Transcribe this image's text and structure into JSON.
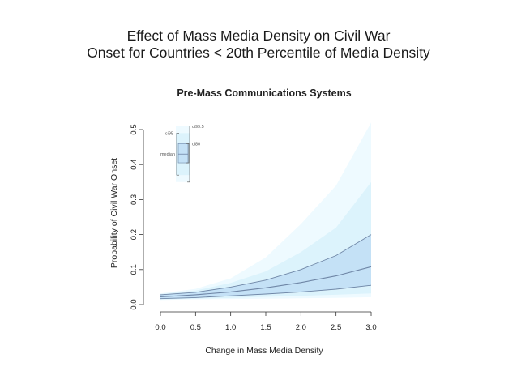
{
  "slide": {
    "title_line1": "Effect of Mass Media Density on Civil War",
    "title_line2": "Onset for Countries < 20th Percentile of Media Density"
  },
  "colors": {
    "band_outer": "#eefaff",
    "band_mid": "#dcf3fc",
    "band_inner": "#c4e1f6",
    "median_line": "#6f86a6",
    "axis": "#333333"
  },
  "chart_data": {
    "type": "area",
    "title": "Pre-Mass Communications Systems",
    "xlabel": "Change in Mass Media Density",
    "ylabel": "Probability of Civil War Onset",
    "xlim": [
      0,
      3
    ],
    "ylim": [
      0,
      0.5
    ],
    "x_ticks": [
      "0.0",
      "0.5",
      "1.0",
      "1.5",
      "2.0",
      "2.5",
      "3.0"
    ],
    "y_ticks": [
      "0.0",
      "0.1",
      "0.2",
      "0.3",
      "0.4",
      "0.5"
    ],
    "x": [
      0,
      0.5,
      1.0,
      1.5,
      2.0,
      2.5,
      3.0
    ],
    "series": [
      {
        "name": "ci99.5 upper",
        "values": [
          0.032,
          0.045,
          0.075,
          0.135,
          0.23,
          0.34,
          0.52
        ]
      },
      {
        "name": "ci95 upper",
        "values": [
          0.03,
          0.04,
          0.062,
          0.095,
          0.15,
          0.22,
          0.35
        ]
      },
      {
        "name": "ci80 upper",
        "values": [
          0.028,
          0.035,
          0.05,
          0.07,
          0.1,
          0.14,
          0.2
        ]
      },
      {
        "name": "median",
        "values": [
          0.022,
          0.028,
          0.036,
          0.048,
          0.063,
          0.082,
          0.108
        ]
      },
      {
        "name": "ci80 lower",
        "values": [
          0.017,
          0.02,
          0.025,
          0.03,
          0.036,
          0.044,
          0.055
        ]
      },
      {
        "name": "ci95 lower",
        "values": [
          0.015,
          0.017,
          0.019,
          0.022,
          0.025,
          0.028,
          0.032
        ]
      },
      {
        "name": "ci99.5 lower",
        "values": [
          0.013,
          0.015,
          0.016,
          0.017,
          0.018,
          0.019,
          0.021
        ]
      }
    ],
    "legend": {
      "placement": "top-left",
      "labels": {
        "ci995": "ci99.5",
        "ci95": "ci95",
        "ci80": "ci80",
        "median": "median"
      },
      "ranges": {
        "ci995": [
          0.35,
          0.51
        ],
        "ci95": [
          0.37,
          0.49
        ],
        "ci80": [
          0.405,
          0.46
        ],
        "median": 0.43
      }
    }
  }
}
